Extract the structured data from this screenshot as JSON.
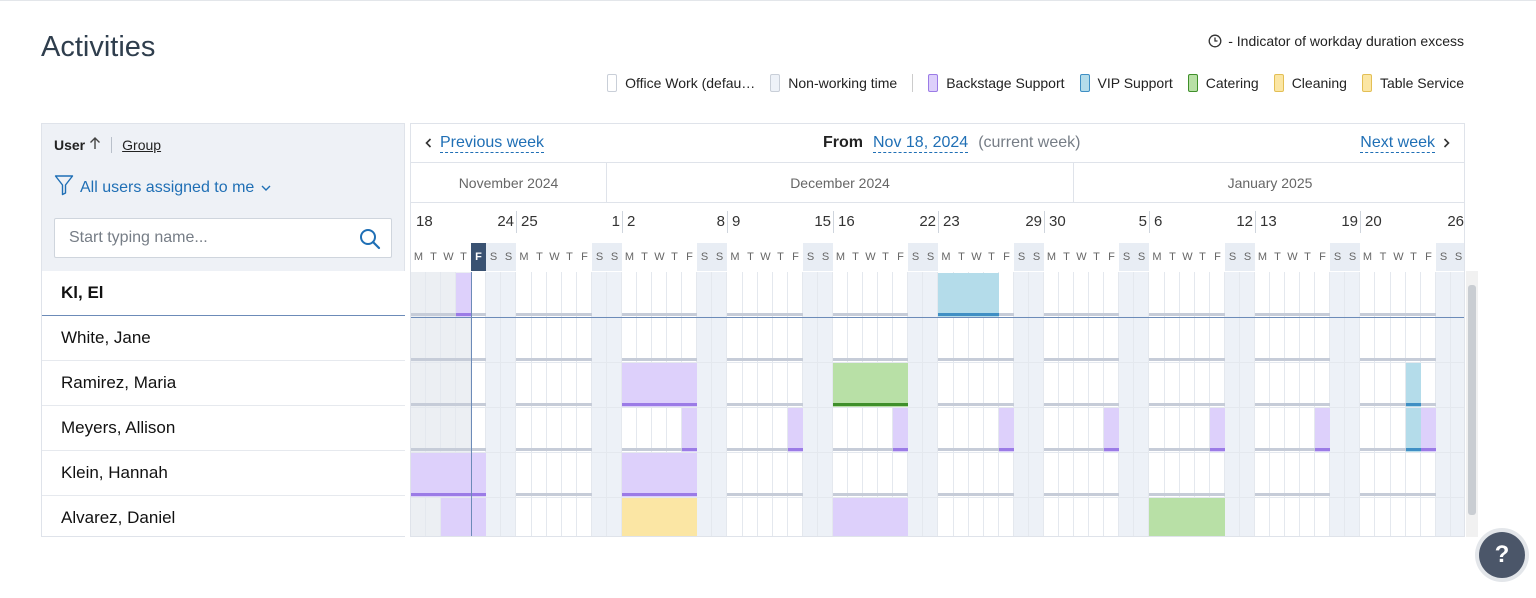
{
  "page": {
    "title": "Activities"
  },
  "excess_indicator": {
    "text": "- Indicator of workday duration excess",
    "icon": "clock-icon"
  },
  "legend": [
    {
      "label": "Office Work (defau…",
      "color": "#ffffff",
      "border": "#c9cfd8"
    },
    {
      "label": "Non-working time",
      "color": "#eef2f8",
      "border": "#c9cfd8"
    },
    {
      "label": "Backstage Support",
      "color": "#ddd0fb",
      "border": "#9b7be6"
    },
    {
      "label": "VIP Support",
      "color": "#b4dcea",
      "border": "#3f8fc4"
    },
    {
      "label": "Catering",
      "color": "#b8e0a6",
      "border": "#3f8f2a"
    },
    {
      "label": "Cleaning",
      "color": "#fbe6a4",
      "border": "#e3bf55"
    },
    {
      "label": "Table Service",
      "color": "#fbe6a4",
      "border": "#e3bf55"
    }
  ],
  "sort": {
    "user_label": "User",
    "group_label": "Group",
    "direction_icon": "arrow-up-icon"
  },
  "filter": {
    "label": "All users assigned to me"
  },
  "search": {
    "placeholder": "Start typing name..."
  },
  "users": [
    {
      "name": "Kl, El",
      "current": true
    },
    {
      "name": "White, Jane"
    },
    {
      "name": "Ramirez, Maria"
    },
    {
      "name": "Meyers, Allison"
    },
    {
      "name": "Klein, Hannah"
    },
    {
      "name": "Alvarez, Daniel"
    }
  ],
  "nav": {
    "prev": "Previous week",
    "from": "From",
    "date": "Nov 18, 2024",
    "current": "(current week)",
    "next": "Next week"
  },
  "months": [
    "November 2024",
    "December 2024",
    "January 2025"
  ],
  "day_numbers": [
    "18",
    "24",
    "25",
    "1",
    "2",
    "8",
    "9",
    "15",
    "16",
    "22",
    "23",
    "29",
    "30",
    "5",
    "6",
    "12",
    "13",
    "19",
    "20",
    "26"
  ],
  "weekdays": [
    "M",
    "T",
    "W",
    "T",
    "F",
    "S",
    "S"
  ],
  "today_weekday": "F",
  "help": {
    "label": "?"
  },
  "colors": {
    "backstage": "#ddd0fb",
    "backstage_bar": "#9b7be6",
    "vip": "#b4dcea",
    "vip_bar": "#3f8fc4",
    "catering": "#b8e0a6",
    "catering_bar": "#3f8f2a",
    "cleaning": "#fbe6a4",
    "cleaning_bar": "#e3bf55",
    "accent": "#1f6fb5"
  }
}
